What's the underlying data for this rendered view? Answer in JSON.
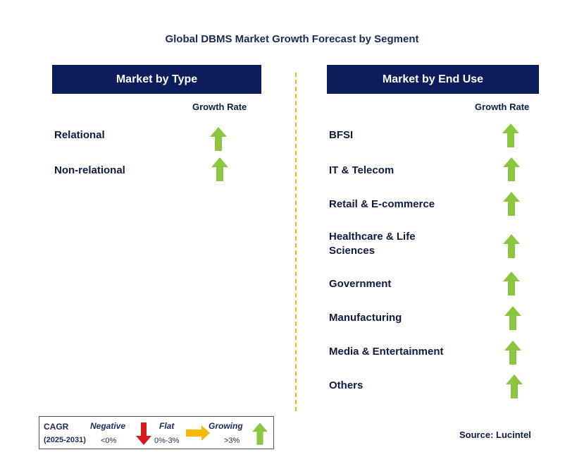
{
  "title": "Global DBMS Market Growth Forecast by Segment",
  "left_panel": {
    "header": "Market by Type",
    "growth_rate_label": "Growth Rate",
    "segments": [
      {
        "label": "Relational",
        "trend": "growing"
      },
      {
        "label": "Non-relational",
        "trend": "growing"
      }
    ]
  },
  "right_panel": {
    "header": "Market by End Use",
    "growth_rate_label": "Growth Rate",
    "segments": [
      {
        "label": "BFSI",
        "trend": "growing"
      },
      {
        "label": "IT & Telecom",
        "trend": "growing"
      },
      {
        "label": "Retail & E-commerce",
        "trend": "growing"
      },
      {
        "label": "Healthcare & Life Sciences",
        "trend": "growing"
      },
      {
        "label": "Government",
        "trend": "growing"
      },
      {
        "label": "Manufacturing",
        "trend": "growing"
      },
      {
        "label": "Media & Entertainment",
        "trend": "growing"
      },
      {
        "label": "Others",
        "trend": "growing"
      }
    ]
  },
  "legend": {
    "cagr_label": "CAGR",
    "period": "(2025-2031)",
    "negative_label": "Negative",
    "negative_range": "<0%",
    "flat_label": "Flat",
    "flat_range": "0%-3%",
    "growing_label": "Growing",
    "growing_range": ">3%"
  },
  "source": "Source: Lucintel",
  "colors": {
    "header_bg": "#0b1e5b",
    "growing": "#8cc63f",
    "negative": "#d7191c",
    "flat": "#f9b800",
    "divider": "#f2b705"
  }
}
